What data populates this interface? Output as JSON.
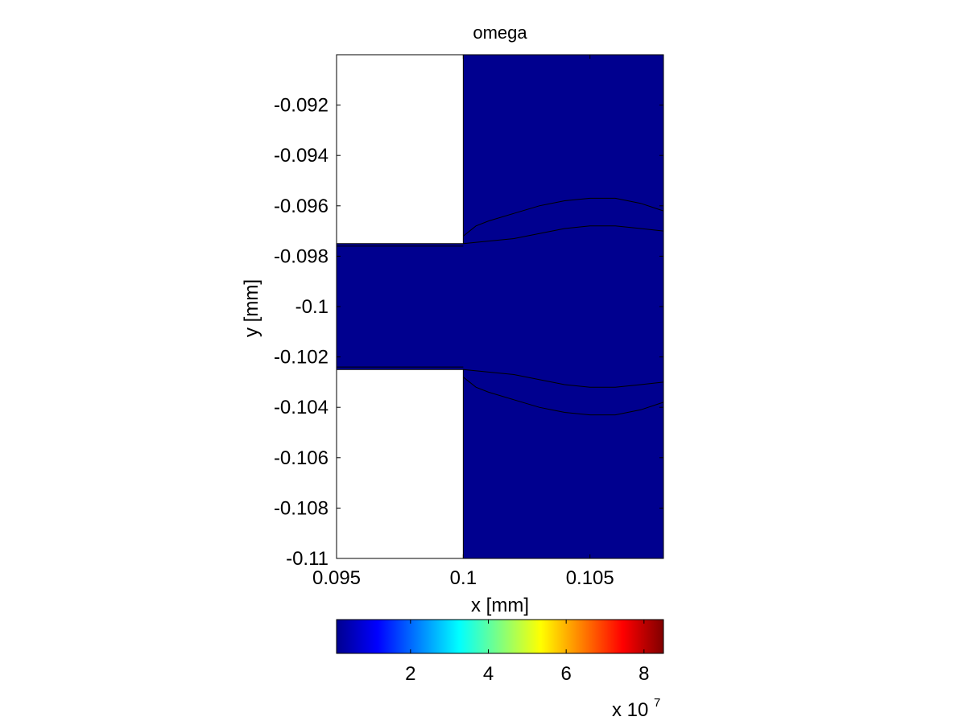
{
  "chart_data": {
    "type": "heatmap",
    "title": "omega",
    "xlabel": "x [mm]",
    "ylabel": "y [mm]",
    "xlim": [
      0.095,
      0.1079
    ],
    "ylim": [
      -0.11,
      -0.09
    ],
    "x_ticks": [
      {
        "value": 0.095,
        "label": "0.095"
      },
      {
        "value": 0.1,
        "label": "0.1"
      },
      {
        "value": 0.105,
        "label": "0.105"
      }
    ],
    "y_ticks": [
      {
        "value": -0.092,
        "label": "-0.092"
      },
      {
        "value": -0.094,
        "label": "-0.094"
      },
      {
        "value": -0.096,
        "label": "-0.096"
      },
      {
        "value": -0.098,
        "label": "-0.098"
      },
      {
        "value": -0.1,
        "label": "-0.1"
      },
      {
        "value": -0.102,
        "label": "-0.102"
      },
      {
        "value": -0.104,
        "label": "-0.104"
      },
      {
        "value": -0.106,
        "label": "-0.106"
      },
      {
        "value": -0.108,
        "label": "-0.108"
      },
      {
        "value": -0.11,
        "label": "-0.11"
      }
    ],
    "colormap": "jet",
    "field_color": "#00008f",
    "colorbar": {
      "orientation": "horizontal",
      "range": [
        0.1,
        8.5
      ],
      "ticks": [
        {
          "value": 2,
          "label": "2"
        },
        {
          "value": 4,
          "label": "4"
        },
        {
          "value": 6,
          "label": "6"
        },
        {
          "value": 8,
          "label": "8"
        }
      ],
      "multiplier_base": "x 10",
      "multiplier_exponent": "7"
    },
    "regions": [
      {
        "name": "solid-upper",
        "x": [
          0.095,
          0.1
        ],
        "y": [
          -0.0975,
          -0.09
        ],
        "fill": "#ffffff"
      },
      {
        "name": "solid-lower",
        "x": [
          0.095,
          0.1
        ],
        "y": [
          -0.11,
          -0.1025
        ],
        "fill": "#ffffff"
      }
    ],
    "contours": [
      {
        "name": "upper-jet-outer",
        "points": [
          [
            0.1,
            -0.0972
          ],
          [
            0.1005,
            -0.0968
          ],
          [
            0.101,
            -0.0966
          ],
          [
            0.102,
            -0.0963
          ],
          [
            0.103,
            -0.096
          ],
          [
            0.104,
            -0.0958
          ],
          [
            0.105,
            -0.0957
          ],
          [
            0.106,
            -0.0957
          ],
          [
            0.107,
            -0.0959
          ],
          [
            0.1079,
            -0.0962
          ]
        ]
      },
      {
        "name": "upper-jet-inner",
        "points": [
          [
            0.1,
            -0.0975
          ],
          [
            0.101,
            -0.0974
          ],
          [
            0.102,
            -0.0973
          ],
          [
            0.103,
            -0.0971
          ],
          [
            0.104,
            -0.0969
          ],
          [
            0.105,
            -0.0968
          ],
          [
            0.106,
            -0.0968
          ],
          [
            0.107,
            -0.0969
          ],
          [
            0.1079,
            -0.097
          ]
        ]
      },
      {
        "name": "lower-jet-inner",
        "points": [
          [
            0.1,
            -0.1025
          ],
          [
            0.101,
            -0.1026
          ],
          [
            0.102,
            -0.1027
          ],
          [
            0.103,
            -0.1029
          ],
          [
            0.104,
            -0.1031
          ],
          [
            0.105,
            -0.1032
          ],
          [
            0.106,
            -0.1032
          ],
          [
            0.107,
            -0.1031
          ],
          [
            0.1079,
            -0.103
          ]
        ]
      },
      {
        "name": "lower-jet-outer",
        "points": [
          [
            0.1,
            -0.1028
          ],
          [
            0.1005,
            -0.1032
          ],
          [
            0.101,
            -0.1034
          ],
          [
            0.102,
            -0.1037
          ],
          [
            0.103,
            -0.104
          ],
          [
            0.104,
            -0.1042
          ],
          [
            0.105,
            -0.1043
          ],
          [
            0.106,
            -0.1043
          ],
          [
            0.107,
            -0.1041
          ],
          [
            0.1079,
            -0.1038
          ]
        ]
      },
      {
        "name": "channel-upper-wall",
        "points": [
          [
            0.095,
            -0.0976
          ],
          [
            0.1,
            -0.0976
          ]
        ]
      },
      {
        "name": "channel-lower-wall",
        "points": [
          [
            0.095,
            -0.1024
          ],
          [
            0.1,
            -0.1024
          ]
        ]
      }
    ]
  }
}
